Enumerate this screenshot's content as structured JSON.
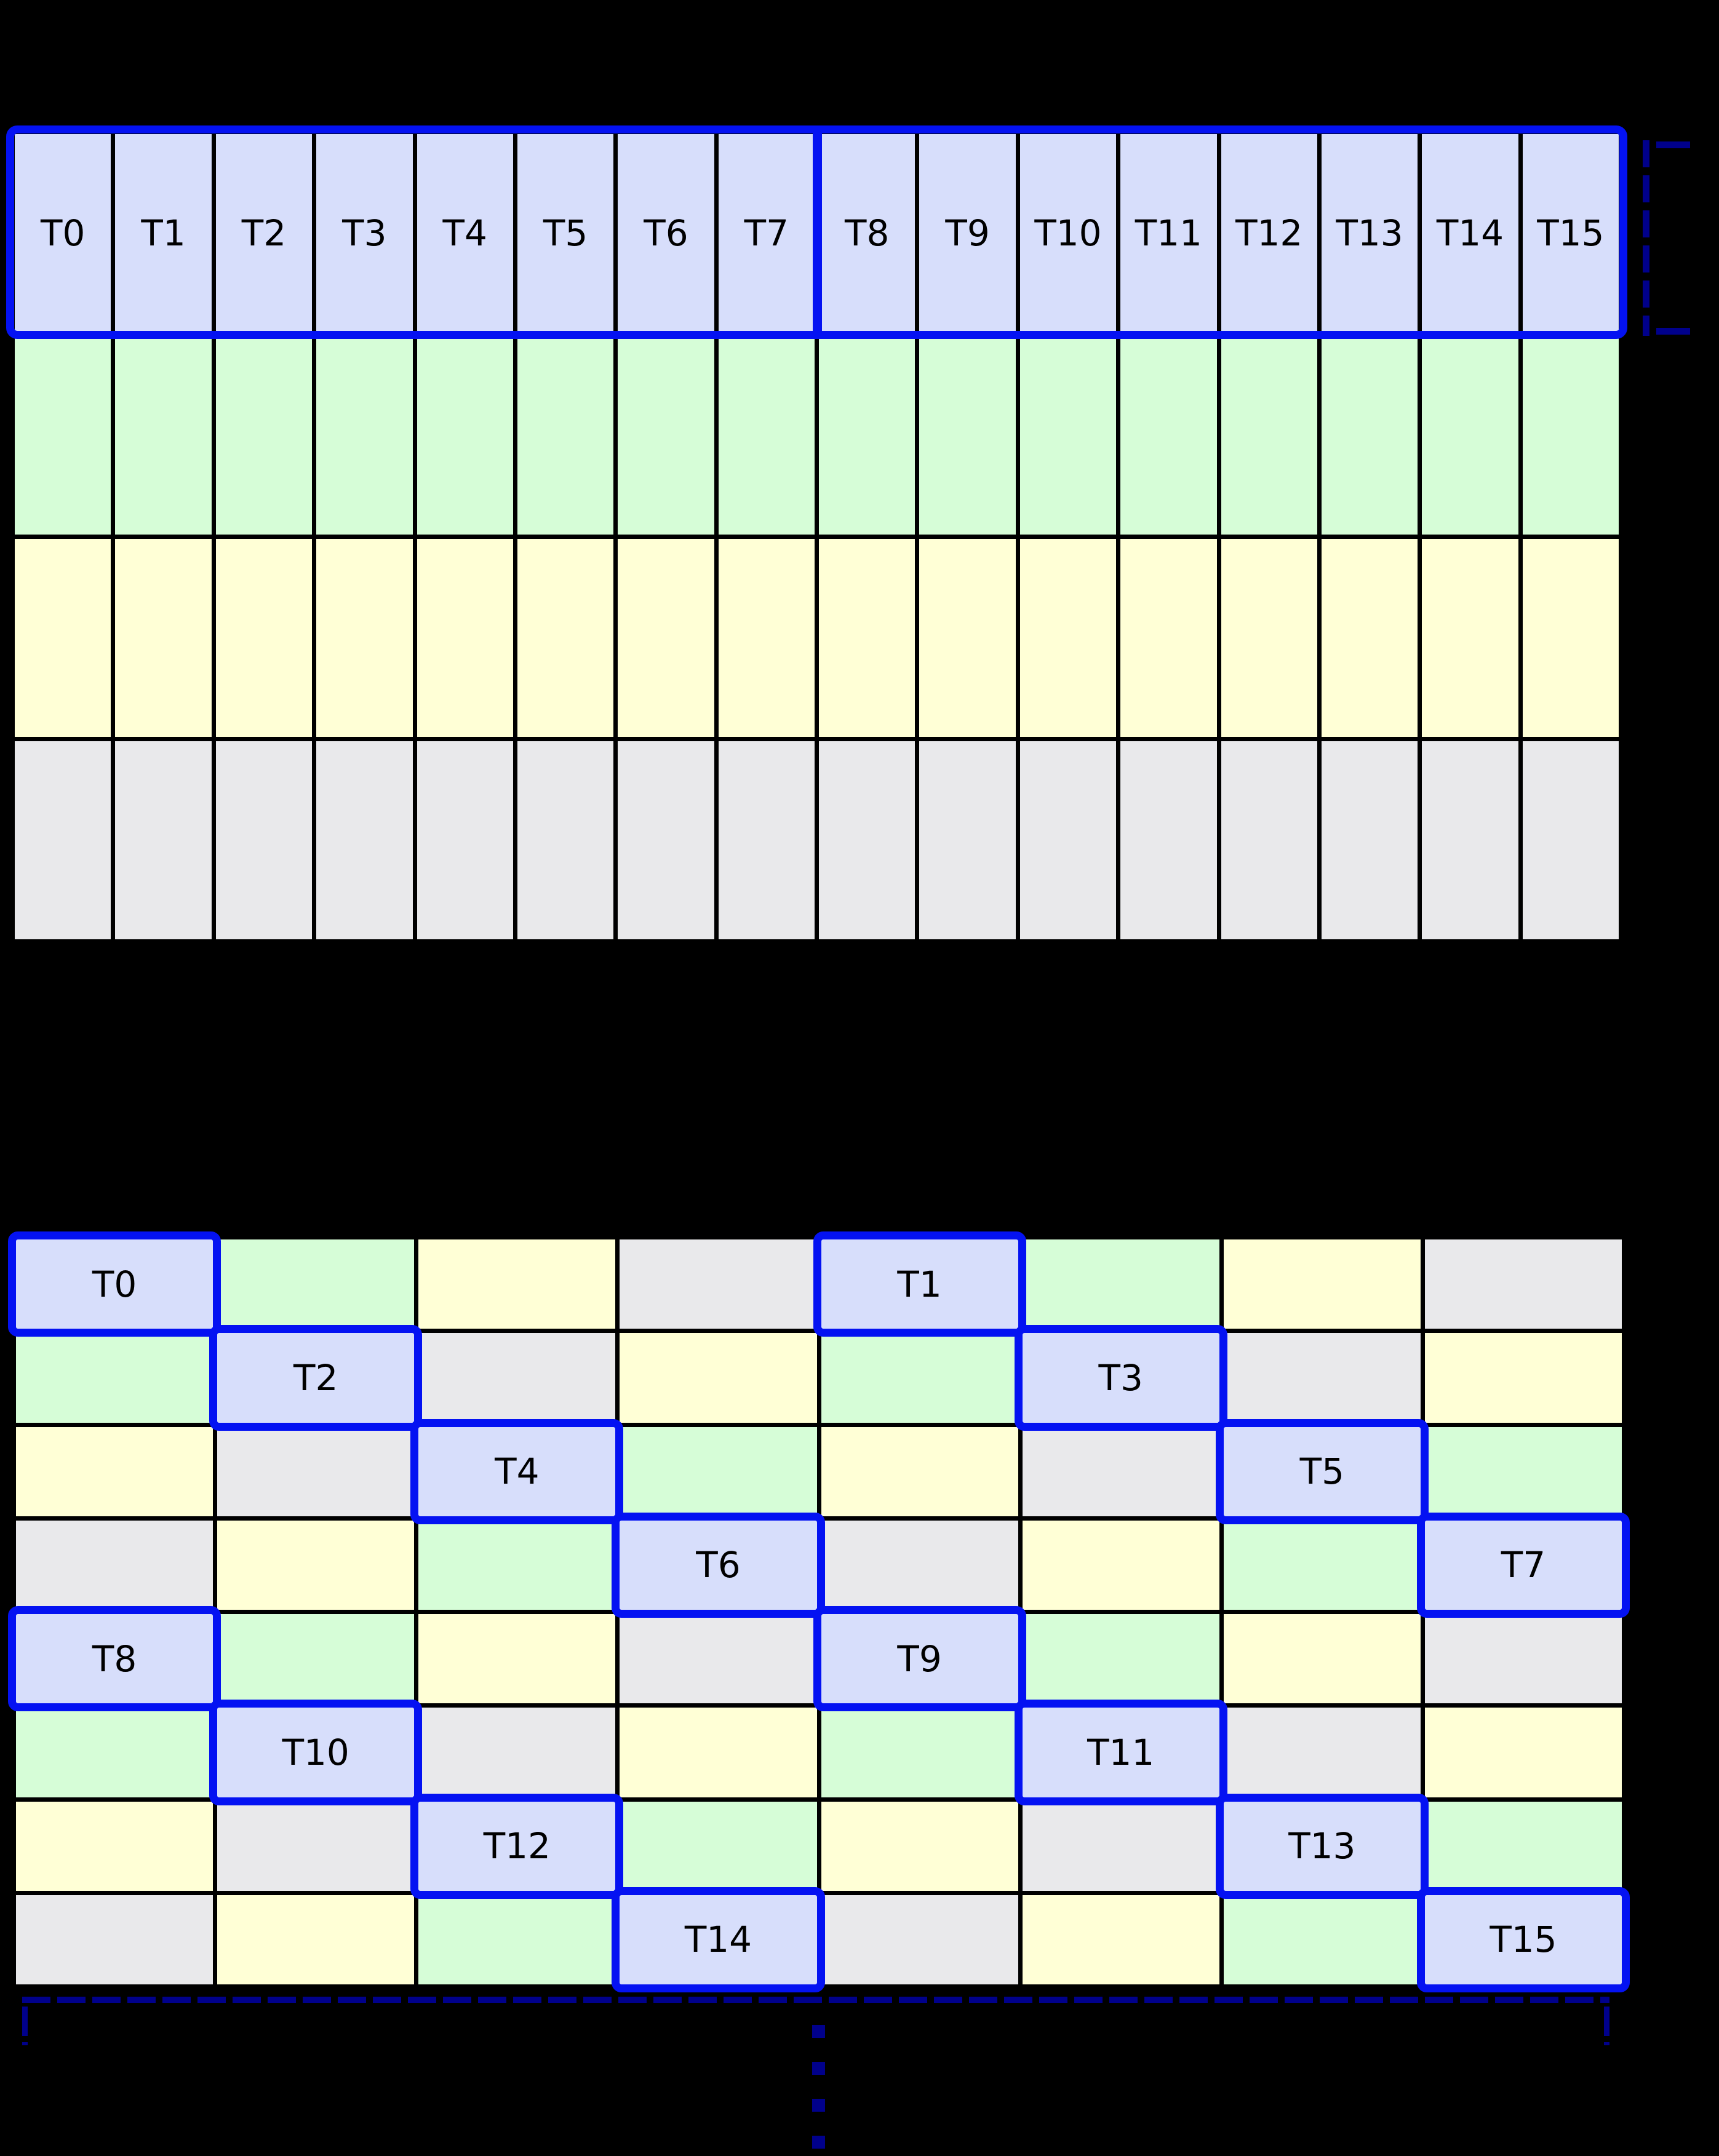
{
  "colors": {
    "background": "#000000",
    "lavender": "#d7defb",
    "green": "#d6fdd7",
    "yellow": "#ffffd6",
    "gray": "#e9e9eb",
    "blue": "#0412f2",
    "navy": "#00008b",
    "grid_line": "#000000",
    "label_text": "#000000"
  },
  "top_grid": {
    "columns": 16,
    "rows": 4,
    "thread_labels": [
      "T0",
      "T1",
      "T2",
      "T3",
      "T4",
      "T5",
      "T6",
      "T7",
      "T8",
      "T9",
      "T10",
      "T11",
      "T12",
      "T13",
      "T14",
      "T15"
    ],
    "groups_of_eight": 2,
    "cells": [
      {
        "cls": "c-lav",
        "label": "T0"
      },
      {
        "cls": "c-lav",
        "label": "T1"
      },
      {
        "cls": "c-lav",
        "label": "T2"
      },
      {
        "cls": "c-lav",
        "label": "T3"
      },
      {
        "cls": "c-lav",
        "label": "T4"
      },
      {
        "cls": "c-lav",
        "label": "T5"
      },
      {
        "cls": "c-lav",
        "label": "T6"
      },
      {
        "cls": "c-lav",
        "label": "T7"
      },
      {
        "cls": "c-lav",
        "label": "T8"
      },
      {
        "cls": "c-lav",
        "label": "T9"
      },
      {
        "cls": "c-lav",
        "label": "T10"
      },
      {
        "cls": "c-lav",
        "label": "T11"
      },
      {
        "cls": "c-lav",
        "label": "T12"
      },
      {
        "cls": "c-lav",
        "label": "T13"
      },
      {
        "cls": "c-lav",
        "label": "T14"
      },
      {
        "cls": "c-lav",
        "label": "T15"
      },
      {
        "cls": "c-grn"
      },
      {
        "cls": "c-grn"
      },
      {
        "cls": "c-grn"
      },
      {
        "cls": "c-grn"
      },
      {
        "cls": "c-grn"
      },
      {
        "cls": "c-grn"
      },
      {
        "cls": "c-grn"
      },
      {
        "cls": "c-grn"
      },
      {
        "cls": "c-grn"
      },
      {
        "cls": "c-grn"
      },
      {
        "cls": "c-grn"
      },
      {
        "cls": "c-grn"
      },
      {
        "cls": "c-grn"
      },
      {
        "cls": "c-grn"
      },
      {
        "cls": "c-grn"
      },
      {
        "cls": "c-grn"
      },
      {
        "cls": "c-yel"
      },
      {
        "cls": "c-yel"
      },
      {
        "cls": "c-yel"
      },
      {
        "cls": "c-yel"
      },
      {
        "cls": "c-yel"
      },
      {
        "cls": "c-yel"
      },
      {
        "cls": "c-yel"
      },
      {
        "cls": "c-yel"
      },
      {
        "cls": "c-yel"
      },
      {
        "cls": "c-yel"
      },
      {
        "cls": "c-yel"
      },
      {
        "cls": "c-yel"
      },
      {
        "cls": "c-yel"
      },
      {
        "cls": "c-yel"
      },
      {
        "cls": "c-yel"
      },
      {
        "cls": "c-yel"
      },
      {
        "cls": "c-gry"
      },
      {
        "cls": "c-gry"
      },
      {
        "cls": "c-gry"
      },
      {
        "cls": "c-gry"
      },
      {
        "cls": "c-gry"
      },
      {
        "cls": "c-gry"
      },
      {
        "cls": "c-gry"
      },
      {
        "cls": "c-gry"
      },
      {
        "cls": "c-gry"
      },
      {
        "cls": "c-gry"
      },
      {
        "cls": "c-gry"
      },
      {
        "cls": "c-gry"
      },
      {
        "cls": "c-gry"
      },
      {
        "cls": "c-gry"
      },
      {
        "cls": "c-gry"
      },
      {
        "cls": "c-gry"
      }
    ]
  },
  "bottom_grid": {
    "columns": 8,
    "rows": 8,
    "cells": [
      {
        "cls": "c-lav hl",
        "label": "T0"
      },
      {
        "cls": "c-grn"
      },
      {
        "cls": "c-yel"
      },
      {
        "cls": "c-gry"
      },
      {
        "cls": "c-lav hl",
        "label": "T1"
      },
      {
        "cls": "c-grn"
      },
      {
        "cls": "c-yel"
      },
      {
        "cls": "c-gry"
      },
      {
        "cls": "c-grn"
      },
      {
        "cls": "c-lav hl",
        "label": "T2"
      },
      {
        "cls": "c-gry"
      },
      {
        "cls": "c-yel"
      },
      {
        "cls": "c-grn"
      },
      {
        "cls": "c-lav hl",
        "label": "T3"
      },
      {
        "cls": "c-gry"
      },
      {
        "cls": "c-yel"
      },
      {
        "cls": "c-yel"
      },
      {
        "cls": "c-gry"
      },
      {
        "cls": "c-lav hl",
        "label": "T4"
      },
      {
        "cls": "c-grn"
      },
      {
        "cls": "c-yel"
      },
      {
        "cls": "c-gry"
      },
      {
        "cls": "c-lav hl",
        "label": "T5"
      },
      {
        "cls": "c-grn"
      },
      {
        "cls": "c-gry"
      },
      {
        "cls": "c-yel"
      },
      {
        "cls": "c-grn"
      },
      {
        "cls": "c-lav hl",
        "label": "T6"
      },
      {
        "cls": "c-gry"
      },
      {
        "cls": "c-yel"
      },
      {
        "cls": "c-grn"
      },
      {
        "cls": "c-lav hl",
        "label": "T7"
      },
      {
        "cls": "c-lav hl",
        "label": "T8"
      },
      {
        "cls": "c-grn"
      },
      {
        "cls": "c-yel"
      },
      {
        "cls": "c-gry"
      },
      {
        "cls": "c-lav hl",
        "label": "T9"
      },
      {
        "cls": "c-grn"
      },
      {
        "cls": "c-yel"
      },
      {
        "cls": "c-gry"
      },
      {
        "cls": "c-grn"
      },
      {
        "cls": "c-lav hl",
        "label": "T10"
      },
      {
        "cls": "c-gry"
      },
      {
        "cls": "c-yel"
      },
      {
        "cls": "c-grn"
      },
      {
        "cls": "c-lav hl",
        "label": "T11"
      },
      {
        "cls": "c-gry"
      },
      {
        "cls": "c-yel"
      },
      {
        "cls": "c-yel"
      },
      {
        "cls": "c-gry"
      },
      {
        "cls": "c-lav hl",
        "label": "T12"
      },
      {
        "cls": "c-grn"
      },
      {
        "cls": "c-yel"
      },
      {
        "cls": "c-gry"
      },
      {
        "cls": "c-lav hl",
        "label": "T13"
      },
      {
        "cls": "c-grn"
      },
      {
        "cls": "c-gry"
      },
      {
        "cls": "c-yel"
      },
      {
        "cls": "c-grn"
      },
      {
        "cls": "c-lav hl",
        "label": "T14"
      },
      {
        "cls": "c-gry"
      },
      {
        "cls": "c-yel"
      },
      {
        "cls": "c-grn"
      },
      {
        "cls": "c-lav hl",
        "label": "T15"
      }
    ]
  },
  "annotations": {
    "row_height_bracket": {
      "shape": "dashed-bracket",
      "position": "right-of-top-grid-first-row",
      "color": "#00008b"
    },
    "grid_width_bracket": {
      "shape": "dashed-underline-with-end-ticks",
      "position": "below-bottom-grid",
      "color": "#00008b"
    },
    "continuation_dots": {
      "shape": "vertical-dashed-ellipsis",
      "position": "bottom-center",
      "color": "#00008b"
    }
  }
}
